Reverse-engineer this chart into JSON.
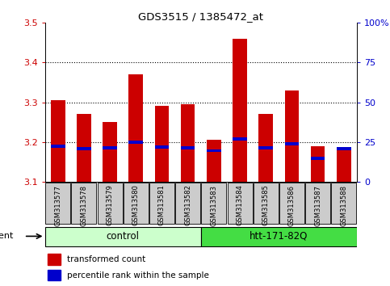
{
  "title": "GDS3515 / 1385472_at",
  "samples": [
    "GSM313577",
    "GSM313578",
    "GSM313579",
    "GSM313580",
    "GSM313581",
    "GSM313582",
    "GSM313583",
    "GSM313584",
    "GSM313585",
    "GSM313586",
    "GSM313587",
    "GSM313588"
  ],
  "transformed_counts": [
    3.305,
    3.27,
    3.25,
    3.37,
    3.29,
    3.295,
    3.205,
    3.46,
    3.27,
    3.33,
    3.19,
    3.185
  ],
  "percentile_ranks": [
    3.19,
    3.183,
    3.185,
    3.2,
    3.188,
    3.185,
    3.178,
    3.208,
    3.185,
    3.195,
    3.158,
    3.183
  ],
  "y_min": 3.1,
  "y_max": 3.5,
  "y_ticks": [
    3.1,
    3.2,
    3.3,
    3.4,
    3.5
  ],
  "y2_ticks": [
    0,
    25,
    50,
    75,
    100
  ],
  "y2_labels": [
    "0",
    "25",
    "50",
    "75",
    "100%"
  ],
  "bar_color": "#cc0000",
  "percentile_color": "#0000cc",
  "control_color": "#ccffcc",
  "htt_color": "#44dd44",
  "bg_color": "#cccccc",
  "control_label": "control",
  "htt_label": "htt-171-82Q",
  "agent_label": "agent",
  "legend1": "transformed count",
  "legend2": "percentile rank within the sample",
  "grid_color": "#000000",
  "ylabel_color": "#cc0000",
  "y2label_color": "#0000cc",
  "bar_width": 0.55,
  "pct_bar_height": 0.008
}
